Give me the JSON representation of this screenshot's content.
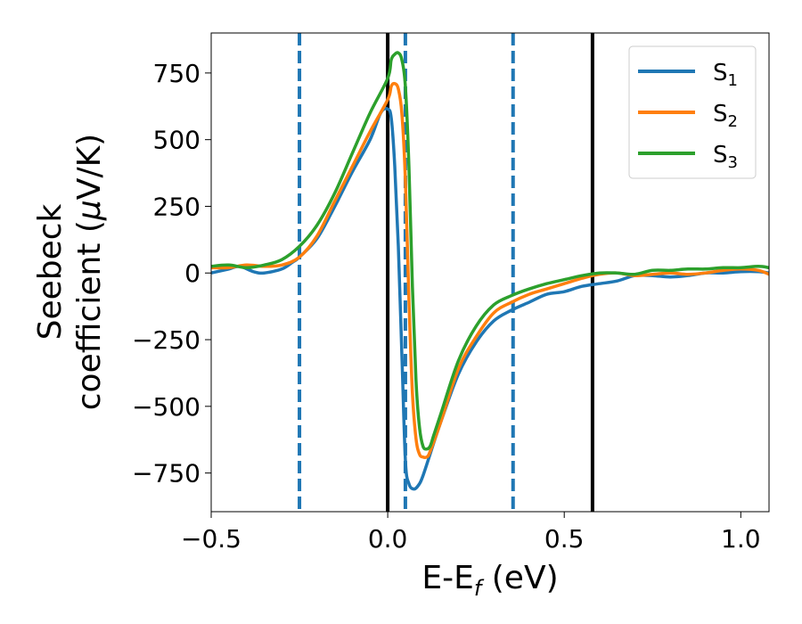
{
  "chart_data": {
    "type": "line",
    "xlabel": {
      "main": "E-E",
      "sub": "f",
      "unit": " (eV)"
    },
    "ylabel": {
      "line1": "Seebeck",
      "line2_pre": "coefficient  (",
      "mu": "μ",
      "line2_post": "V/K)"
    },
    "xlim": [
      -0.5,
      1.08
    ],
    "ylim": [
      -895,
      900
    ],
    "xticks": [
      {
        "value": -0.5,
        "label": "−0.5"
      },
      {
        "value": 0.0,
        "label": "0.0"
      },
      {
        "value": 0.5,
        "label": "0.5"
      },
      {
        "value": 1.0,
        "label": "1.0"
      }
    ],
    "yticks": [
      {
        "value": 750,
        "label": "750"
      },
      {
        "value": 500,
        "label": "500"
      },
      {
        "value": 250,
        "label": "250"
      },
      {
        "value": 0,
        "label": "0"
      },
      {
        "value": -250,
        "label": "−250"
      },
      {
        "value": -500,
        "label": "−500"
      },
      {
        "value": -750,
        "label": "−750"
      }
    ],
    "legend": {
      "position": "top-right"
    },
    "grid": false,
    "vlines": [
      {
        "x": -0.25,
        "style": "dashed",
        "color": "#1f77b4"
      },
      {
        "x": 0.0,
        "style": "solid",
        "color": "#000000"
      },
      {
        "x": 0.05,
        "style": "dashed",
        "color": "#1f77b4"
      },
      {
        "x": 0.355,
        "style": "dashed",
        "color": "#1f77b4"
      },
      {
        "x": 0.58,
        "style": "solid",
        "color": "#000000"
      }
    ],
    "series": [
      {
        "name": "S",
        "sub": "1",
        "color": "#1f77b4",
        "x": [
          -0.5,
          -0.45,
          -0.42,
          -0.38,
          -0.35,
          -0.3,
          -0.27,
          -0.25,
          -0.2,
          -0.15,
          -0.1,
          -0.05,
          -0.02,
          0.0,
          0.01,
          0.02,
          0.03,
          0.04,
          0.05,
          0.06,
          0.075,
          0.09,
          0.1,
          0.12,
          0.15,
          0.2,
          0.25,
          0.3,
          0.35,
          0.4,
          0.45,
          0.5,
          0.55,
          0.6,
          0.65,
          0.7,
          0.75,
          0.8,
          0.85,
          0.9,
          0.95,
          1.0,
          1.05,
          1.08
        ],
        "y": [
          0,
          15,
          25,
          5,
          0,
          15,
          40,
          60,
          130,
          250,
          380,
          500,
          600,
          615,
          580,
          400,
          100,
          -300,
          -700,
          -790,
          -810,
          -790,
          -760,
          -680,
          -560,
          -380,
          -260,
          -180,
          -140,
          -110,
          -80,
          -70,
          -50,
          -40,
          -30,
          -10,
          -10,
          -15,
          -10,
          0,
          0,
          5,
          5,
          0
        ]
      },
      {
        "name": "S",
        "sub": "2",
        "color": "#ff7f0e",
        "x": [
          -0.5,
          -0.45,
          -0.4,
          -0.35,
          -0.3,
          -0.25,
          -0.2,
          -0.15,
          -0.1,
          -0.05,
          0.0,
          0.01,
          0.02,
          0.03,
          0.04,
          0.05,
          0.06,
          0.07,
          0.08,
          0.09,
          0.1,
          0.11,
          0.12,
          0.15,
          0.2,
          0.25,
          0.3,
          0.35,
          0.4,
          0.45,
          0.5,
          0.55,
          0.6,
          0.65,
          0.7,
          0.75,
          0.8,
          0.85,
          0.9,
          0.95,
          1.0,
          1.05,
          1.08
        ],
        "y": [
          20,
          20,
          30,
          25,
          30,
          60,
          140,
          270,
          400,
          530,
          650,
          700,
          710,
          690,
          600,
          350,
          -100,
          -450,
          -620,
          -680,
          -690,
          -690,
          -670,
          -560,
          -360,
          -240,
          -150,
          -110,
          -80,
          -60,
          -40,
          -20,
          -5,
          0,
          -10,
          -5,
          0,
          -5,
          0,
          10,
          15,
          10,
          -5
        ]
      },
      {
        "name": "S",
        "sub": "3",
        "color": "#2ca02c",
        "x": [
          -0.5,
          -0.45,
          -0.4,
          -0.35,
          -0.3,
          -0.25,
          -0.2,
          -0.15,
          -0.1,
          -0.05,
          0.0,
          0.01,
          0.02,
          0.03,
          0.04,
          0.05,
          0.06,
          0.07,
          0.08,
          0.09,
          0.1,
          0.11,
          0.12,
          0.13,
          0.15,
          0.2,
          0.25,
          0.3,
          0.35,
          0.4,
          0.45,
          0.5,
          0.55,
          0.6,
          0.65,
          0.7,
          0.75,
          0.8,
          0.85,
          0.9,
          0.95,
          1.0,
          1.05,
          1.08
        ],
        "y": [
          25,
          30,
          20,
          30,
          50,
          100,
          180,
          300,
          450,
          600,
          730,
          800,
          820,
          825,
          800,
          700,
          400,
          -50,
          -400,
          -580,
          -650,
          -660,
          -650,
          -610,
          -530,
          -330,
          -200,
          -120,
          -85,
          -60,
          -40,
          -25,
          -10,
          0,
          0,
          -5,
          10,
          10,
          15,
          15,
          20,
          20,
          25,
          20
        ]
      }
    ]
  }
}
